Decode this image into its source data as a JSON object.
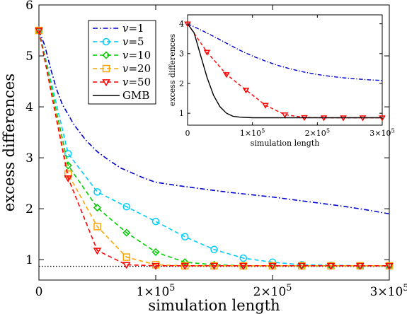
{
  "chart_data": [
    {
      "type": "line",
      "title": "",
      "xlabel": "simulation length",
      "ylabel": "excess differences",
      "xlim": [
        0,
        300000
      ],
      "ylim": [
        0.6,
        6
      ],
      "x_ticks": [
        {
          "value": 0,
          "label": "0",
          "exp": ""
        },
        {
          "value": 100000,
          "label": "1×10",
          "exp": "5"
        },
        {
          "value": 200000,
          "label": "2×10",
          "exp": "5"
        },
        {
          "value": 300000,
          "label": "3×10",
          "exp": "5"
        }
      ],
      "y_ticks": [
        {
          "value": 1,
          "label": "1"
        },
        {
          "value": 2,
          "label": "2"
        },
        {
          "value": 3,
          "label": "3"
        },
        {
          "value": 4,
          "label": "4"
        },
        {
          "value": 5,
          "label": "5"
        },
        {
          "value": 6,
          "label": "6"
        }
      ],
      "legend_position": "top-left",
      "grid": false,
      "reference_line": {
        "y": 0.87,
        "color": "#000000",
        "style": "dotted"
      },
      "series": [
        {
          "name": "v=1",
          "color": "#0000cc",
          "dash": "dashdot",
          "marker": "none",
          "x": [
            0,
            5000,
            10000,
            15000,
            20000,
            25000,
            30000,
            40000,
            50000,
            60000,
            70000,
            80000,
            90000,
            100000,
            120000,
            140000,
            160000,
            180000,
            200000,
            220000,
            240000,
            260000,
            280000,
            300000
          ],
          "y": [
            5.5,
            5.2,
            4.75,
            4.35,
            4.05,
            3.85,
            3.65,
            3.35,
            3.12,
            2.95,
            2.8,
            2.7,
            2.6,
            2.52,
            2.45,
            2.39,
            2.33,
            2.28,
            2.23,
            2.17,
            2.11,
            2.05,
            1.98,
            1.9
          ]
        },
        {
          "name": "v=5",
          "color": "#00ccff",
          "dash": "dashed",
          "marker": "circle",
          "x": [
            0,
            25000,
            50000,
            75000,
            100000,
            125000,
            150000,
            175000,
            200000,
            225000,
            250000,
            275000,
            300000
          ],
          "y": [
            5.5,
            3.08,
            2.33,
            2.04,
            1.75,
            1.45,
            1.2,
            1.03,
            0.95,
            0.9,
            0.89,
            0.88,
            0.88
          ]
        },
        {
          "name": "v=10",
          "color": "#00cc00",
          "dash": "dashed",
          "marker": "diamond",
          "x": [
            0,
            25000,
            50000,
            75000,
            100000,
            125000,
            150000,
            175000,
            200000,
            225000,
            250000,
            275000,
            300000
          ],
          "y": [
            5.5,
            2.85,
            2.02,
            1.53,
            1.15,
            0.95,
            0.9,
            0.88,
            0.88,
            0.88,
            0.88,
            0.88,
            0.88
          ]
        },
        {
          "name": "v=20",
          "color": "#ffa500",
          "dash": "dashed",
          "marker": "square",
          "x": [
            0,
            25000,
            50000,
            75000,
            100000,
            125000,
            150000,
            175000,
            200000,
            225000,
            250000,
            275000,
            300000
          ],
          "y": [
            5.5,
            2.68,
            1.65,
            1.05,
            0.9,
            0.88,
            0.88,
            0.88,
            0.88,
            0.88,
            0.88,
            0.88,
            0.88
          ]
        },
        {
          "name": "v=50",
          "color": "#ff0000",
          "dash": "dashed",
          "marker": "triangle-down",
          "x": [
            0,
            25000,
            50000,
            75000,
            100000,
            125000,
            150000,
            175000,
            200000,
            225000,
            250000,
            275000,
            300000
          ],
          "y": [
            5.5,
            2.6,
            1.18,
            0.9,
            0.88,
            0.88,
            0.88,
            0.88,
            0.88,
            0.88,
            0.88,
            0.88,
            0.88
          ]
        },
        {
          "name": "GMB",
          "color": "#000000",
          "dash": "solid",
          "marker": "none",
          "x": [],
          "y": []
        }
      ]
    },
    {
      "type": "line",
      "title": "",
      "xlabel": "simulation length",
      "ylabel": "excess differences",
      "xlim": [
        0,
        300000
      ],
      "ylim": [
        0.6,
        4.3
      ],
      "x_ticks": [
        {
          "value": 0,
          "label": "0",
          "exp": ""
        },
        {
          "value": 100000,
          "label": "1×10",
          "exp": "5"
        },
        {
          "value": 200000,
          "label": "2×10",
          "exp": "5"
        },
        {
          "value": 300000,
          "label": "3×10",
          "exp": "5"
        }
      ],
      "y_ticks": [
        {
          "value": 1,
          "label": "1"
        },
        {
          "value": 2,
          "label": "2"
        },
        {
          "value": 3,
          "label": "3"
        },
        {
          "value": 4,
          "label": "4"
        }
      ],
      "series": [
        {
          "name": "v=1",
          "color": "#0000cc",
          "dash": "dashdot",
          "marker": "none",
          "x": [
            0,
            20000,
            40000,
            60000,
            80000,
            100000,
            120000,
            140000,
            160000,
            180000,
            200000,
            220000,
            240000,
            260000,
            280000,
            300000
          ],
          "y": [
            4.0,
            3.8,
            3.58,
            3.35,
            3.12,
            2.92,
            2.75,
            2.6,
            2.48,
            2.38,
            2.3,
            2.24,
            2.19,
            2.15,
            2.12,
            2.1
          ]
        },
        {
          "name": "v=50",
          "color": "#ff0000",
          "dash": "dashed",
          "marker": "triangle-down",
          "x": [
            0,
            30000,
            60000,
            90000,
            120000,
            150000,
            180000,
            210000,
            240000,
            270000,
            300000
          ],
          "y": [
            4.0,
            3.05,
            2.3,
            1.78,
            1.27,
            0.95,
            0.86,
            0.85,
            0.85,
            0.85,
            0.85
          ]
        },
        {
          "name": "GMB",
          "color": "#000000",
          "dash": "solid",
          "marker": "none",
          "x": [
            0,
            10000,
            20000,
            30000,
            40000,
            50000,
            60000,
            70000,
            80000,
            90000,
            100000,
            120000,
            150000,
            200000,
            250000,
            300000
          ],
          "y": [
            4.0,
            3.7,
            2.95,
            2.2,
            1.6,
            1.22,
            1.0,
            0.9,
            0.87,
            0.86,
            0.85,
            0.85,
            0.85,
            0.85,
            0.85,
            0.85
          ]
        }
      ]
    }
  ]
}
